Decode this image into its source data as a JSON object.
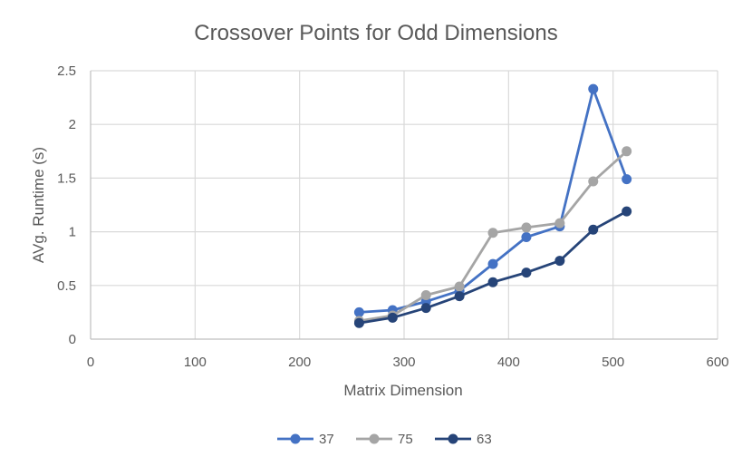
{
  "chart_data": {
    "type": "line",
    "title": "Crossover Points for Odd Dimensions",
    "xlabel": "Matrix Dimension",
    "ylabel": "AVg. Runtime (s)",
    "xlim": [
      0,
      600
    ],
    "ylim": [
      0,
      2.5
    ],
    "x_ticks": [
      0,
      100,
      200,
      300,
      400,
      500,
      600
    ],
    "y_ticks": [
      0,
      0.5,
      1,
      1.5,
      2,
      2.5
    ],
    "x_tick_labels": [
      "0",
      "100",
      "200",
      "300",
      "400",
      "500",
      "600"
    ],
    "y_tick_labels": [
      "0",
      "0.5",
      "1",
      "1.5",
      "2",
      "2.5"
    ],
    "grid": true,
    "legend_position": "bottom",
    "x": [
      257,
      289,
      321,
      353,
      385,
      417,
      449,
      481,
      513
    ],
    "series": [
      {
        "name": "37",
        "color": "#4472C4",
        "values": [
          0.25,
          0.27,
          0.35,
          0.45,
          0.7,
          0.95,
          1.05,
          2.33,
          1.49
        ]
      },
      {
        "name": "75",
        "color": "#A5A5A5",
        "values": [
          0.17,
          0.22,
          0.41,
          0.49,
          0.99,
          1.04,
          1.08,
          1.47,
          1.75
        ]
      },
      {
        "name": "63",
        "color": "#264478",
        "values": [
          0.15,
          0.2,
          0.29,
          0.4,
          0.53,
          0.62,
          0.73,
          1.02,
          1.19
        ]
      }
    ]
  }
}
